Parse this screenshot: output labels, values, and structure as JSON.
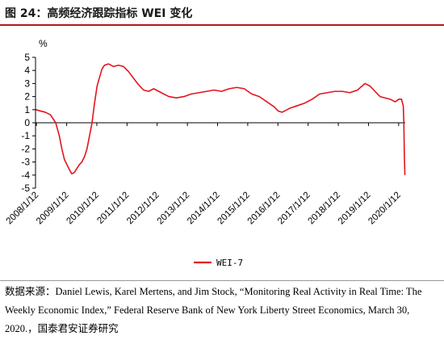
{
  "figure": {
    "title": "图 24：高频经济跟踪指标 WEI 变化",
    "source": "数据来源：Daniel Lewis, Karel Mertens, and Jim Stock, “Monitoring Real Activity in Real Time: The Weekly Economic Index,” Federal Reserve Bank of New York Liberty Street Economics, March 30, 2020.，国泰君安证券研究"
  },
  "colors": {
    "series": "#e4141b",
    "title_rule": "#b01c1c"
  },
  "chart_data": {
    "type": "line",
    "title": "",
    "xlabel": "",
    "ylabel": "",
    "y_unit": "%",
    "ylim": [
      -5,
      5
    ],
    "y_ticks": [
      5,
      4,
      3,
      2,
      1,
      0,
      -1,
      -2,
      -3,
      -4,
      -5
    ],
    "x_ticks": [
      "2008/1/12",
      "2009/1/12",
      "2010/1/12",
      "2011/1/12",
      "2012/1/12",
      "2013/1/12",
      "2014/1/12",
      "2015/1/12",
      "2016/1/12",
      "2017/1/12",
      "2018/1/12",
      "2019/1/12",
      "2020/1/12"
    ],
    "grid": false,
    "legend": "bottom",
    "series": [
      {
        "name": "WEI-7",
        "points": [
          [
            "2008-01-05",
            1.0
          ],
          [
            "2008-03-01",
            0.9
          ],
          [
            "2008-05-01",
            0.8
          ],
          [
            "2008-07-01",
            0.6
          ],
          [
            "2008-09-01",
            0.0
          ],
          [
            "2008-10-15",
            -1.0
          ],
          [
            "2008-11-15",
            -2.0
          ],
          [
            "2008-12-15",
            -2.8
          ],
          [
            "2009-01-15",
            -3.2
          ],
          [
            "2009-02-15",
            -3.6
          ],
          [
            "2009-03-15",
            -3.9
          ],
          [
            "2009-04-15",
            -3.8
          ],
          [
            "2009-05-15",
            -3.5
          ],
          [
            "2009-06-15",
            -3.2
          ],
          [
            "2009-07-15",
            -3.0
          ],
          [
            "2009-08-15",
            -2.6
          ],
          [
            "2009-09-15",
            -2.0
          ],
          [
            "2009-10-15",
            -1.0
          ],
          [
            "2009-11-15",
            0.0
          ],
          [
            "2009-12-15",
            1.5
          ],
          [
            "2010-01-15",
            2.8
          ],
          [
            "2010-02-15",
            3.5
          ],
          [
            "2010-03-15",
            4.1
          ],
          [
            "2010-04-15",
            4.4
          ],
          [
            "2010-06-01",
            4.5
          ],
          [
            "2010-08-01",
            4.3
          ],
          [
            "2010-10-01",
            4.4
          ],
          [
            "2010-12-01",
            4.3
          ],
          [
            "2011-02-01",
            3.9
          ],
          [
            "2011-04-01",
            3.4
          ],
          [
            "2011-06-01",
            2.9
          ],
          [
            "2011-08-01",
            2.5
          ],
          [
            "2011-10-01",
            2.4
          ],
          [
            "2011-12-01",
            2.6
          ],
          [
            "2012-03-01",
            2.3
          ],
          [
            "2012-06-01",
            2.0
          ],
          [
            "2012-09-01",
            1.9
          ],
          [
            "2012-12-01",
            2.0
          ],
          [
            "2013-03-01",
            2.2
          ],
          [
            "2013-06-01",
            2.3
          ],
          [
            "2013-09-01",
            2.4
          ],
          [
            "2013-12-01",
            2.5
          ],
          [
            "2014-03-01",
            2.4
          ],
          [
            "2014-06-01",
            2.6
          ],
          [
            "2014-09-01",
            2.7
          ],
          [
            "2014-12-01",
            2.6
          ],
          [
            "2015-03-01",
            2.2
          ],
          [
            "2015-06-01",
            2.0
          ],
          [
            "2015-09-01",
            1.6
          ],
          [
            "2015-12-01",
            1.2
          ],
          [
            "2016-01-15",
            0.9
          ],
          [
            "2016-03-01",
            0.8
          ],
          [
            "2016-06-01",
            1.1
          ],
          [
            "2016-09-01",
            1.3
          ],
          [
            "2016-12-01",
            1.5
          ],
          [
            "2017-03-01",
            1.8
          ],
          [
            "2017-06-01",
            2.2
          ],
          [
            "2017-09-01",
            2.3
          ],
          [
            "2017-12-01",
            2.4
          ],
          [
            "2018-03-01",
            2.4
          ],
          [
            "2018-06-01",
            2.3
          ],
          [
            "2018-09-01",
            2.5
          ],
          [
            "2018-12-01",
            3.0
          ],
          [
            "2019-02-01",
            2.8
          ],
          [
            "2019-04-01",
            2.4
          ],
          [
            "2019-06-01",
            2.0
          ],
          [
            "2019-08-01",
            1.9
          ],
          [
            "2019-10-01",
            1.8
          ],
          [
            "2019-12-01",
            1.6
          ],
          [
            "2020-01-15",
            1.8
          ],
          [
            "2020-02-15",
            1.8
          ],
          [
            "2020-03-08",
            1.3
          ],
          [
            "2020-03-15",
            0.0
          ],
          [
            "2020-03-21",
            -2.5
          ],
          [
            "2020-03-28",
            -4.0
          ]
        ]
      }
    ]
  }
}
